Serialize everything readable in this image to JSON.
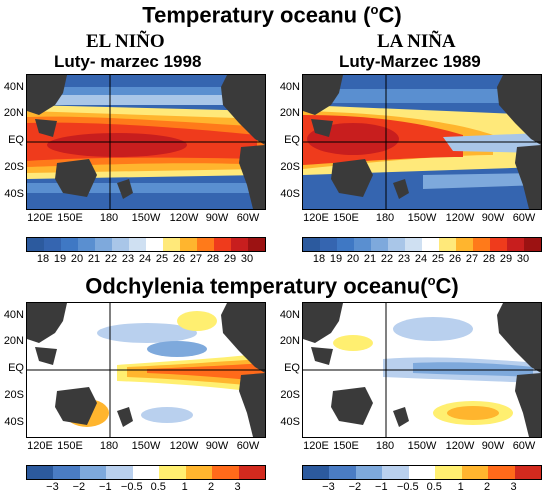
{
  "titles": {
    "top": "Temperatury oceanu (",
    "top_unit_sup": "o",
    "top_unit_end": "C)",
    "bottom": "Odchylenia temperatury oceanu(",
    "bottom_unit_sup": "o",
    "bottom_unit_end": "C)"
  },
  "panels": {
    "elnino_label": "EL NIÑO",
    "elnino_period": "Luty- marzec 1998",
    "lanina_label": "LA NIÑA",
    "lanina_period": "Luty-Marzec 1989"
  },
  "lat_labels": [
    "40N",
    "20N",
    "EQ",
    "20S",
    "40S"
  ],
  "lon_labels": [
    "120E",
    "150E",
    "180",
    "150W",
    "120W",
    "90W",
    "60W"
  ],
  "temp_colorbar": {
    "ticks": [
      "18",
      "19",
      "20",
      "21",
      "22",
      "23",
      "24",
      "25",
      "26",
      "27",
      "28",
      "29",
      "30"
    ],
    "colors": [
      "#2c5a9e",
      "#3565b0",
      "#3f78c4",
      "#5a8fd0",
      "#7ea9dc",
      "#a9c6e8",
      "#cfe0f2",
      "#ffffff",
      "#ffe97a",
      "#ffb52e",
      "#ff7a1a",
      "#ef3b1c",
      "#c81e1e",
      "#9c1212"
    ]
  },
  "anom_colorbar": {
    "ticks": [
      "−3",
      "−2",
      "−1",
      "−0.5",
      "0.5",
      "1",
      "2",
      "3"
    ],
    "colors": [
      "#2c5a9e",
      "#4a7cc4",
      "#7ea9dc",
      "#b9d0ee",
      "#ffffff",
      "#ffef70",
      "#ffb52e",
      "#ff6a1a",
      "#d22a1e"
    ]
  },
  "colors": {
    "land": "#3a3a3a",
    "ocean_cold": "#3f6fb4",
    "ocean_warm": "#e83a1e"
  }
}
